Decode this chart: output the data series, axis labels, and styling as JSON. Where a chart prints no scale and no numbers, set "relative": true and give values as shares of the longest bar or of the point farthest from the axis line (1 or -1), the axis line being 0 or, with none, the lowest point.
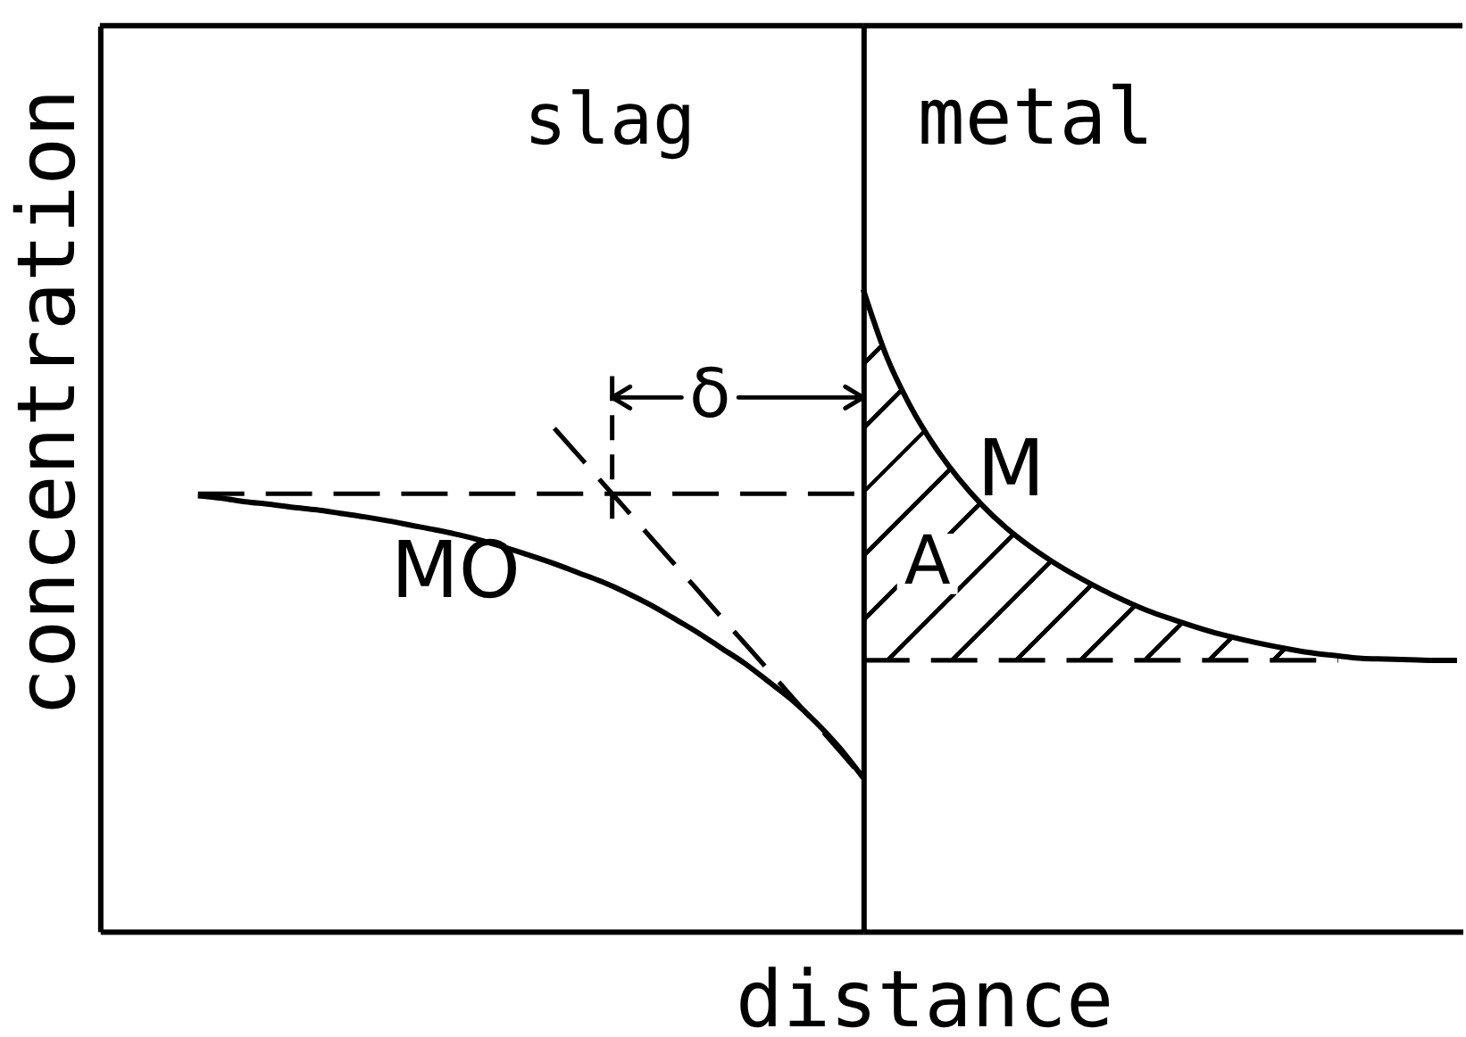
{
  "chart_data": [
    {
      "type": "line",
      "relative": true,
      "title": "slag",
      "ylabel": "concentration",
      "categories": [
        null,
        null,
        null,
        null,
        null,
        null,
        null,
        null,
        null,
        null,
        null,
        null,
        null,
        null,
        null,
        null,
        null,
        null,
        null,
        null,
        null,
        null,
        null,
        null,
        null,
        null,
        null,
        null,
        null
      ],
      "series": [
        {
          "name": "MO",
          "color": "#000000",
          "line_style": "solid",
          "values": [
            0.866,
            0.861,
            0.854,
            0.849,
            0.843,
            0.838,
            0.831,
            0.824,
            0.816,
            0.807,
            0.798,
            0.788,
            0.776,
            0.762,
            0.747,
            0.731,
            0.713,
            0.695,
            0.674,
            0.65,
            0.623,
            0.595,
            0.564,
            0.533,
            0.497,
            0.46,
            0.416,
            0.365,
            0.305
          ]
        },
        {
          "color": "#000000",
          "line_style": "dashed",
          "values": [
            0.87,
            0.87,
            0.87,
            0.87,
            0.87,
            0.87,
            0.87,
            0.87,
            0.87,
            0.87,
            0.87,
            0.87,
            0.87,
            0.87,
            0.87,
            0.87,
            0.87,
            0.87,
            0.87,
            0.87,
            0.87,
            0.87,
            0.87,
            0.87,
            0.87,
            0.87,
            0.87,
            0.87,
            0.87
          ]
        },
        {
          "color": "#000000",
          "line_style": "dashed",
          "values": [
            null,
            null,
            null,
            null,
            null,
            null,
            null,
            null,
            null,
            null,
            null,
            null,
            null,
            null,
            null,
            1.0,
            0.947,
            0.893,
            0.84,
            0.786,
            0.733,
            0.68,
            0.626,
            0.573,
            0.52,
            0.466,
            0.413,
            0.359,
            0.305
          ]
        }
      ],
      "annotations": [
        "δ"
      ]
    },
    {
      "type": "line",
      "relative": true,
      "title": "metal",
      "xlabel": "distance",
      "categories": [
        null,
        null,
        null,
        null,
        null,
        null,
        null,
        null,
        null,
        null,
        null,
        null,
        null,
        null,
        null,
        null,
        null,
        null,
        null,
        null,
        null,
        null,
        null,
        null,
        null,
        null
      ],
      "series": [
        {
          "name": "M",
          "color": "#000000",
          "line_style": "solid",
          "values": [
            1.0,
            0.894,
            0.817,
            0.756,
            0.706,
            0.664,
            0.629,
            0.6,
            0.575,
            0.553,
            0.533,
            0.515,
            0.499,
            0.486,
            0.474,
            0.463,
            0.454,
            0.446,
            0.439,
            0.433,
            0.429,
            0.425,
            0.424,
            0.423,
            0.422,
            0.422
          ],
          "lower": [
            0.422,
            0.422,
            0.422,
            0.422,
            0.422,
            0.422,
            0.422,
            0.422,
            0.422,
            0.422,
            0.422,
            0.422,
            0.422,
            0.422,
            0.422,
            0.422,
            0.422,
            0.422,
            0.422,
            0.422,
            0.422,
            null,
            null,
            null,
            null,
            null
          ],
          "upper": [
            1.0,
            0.894,
            0.817,
            0.756,
            0.706,
            0.664,
            0.629,
            0.6,
            0.575,
            0.553,
            0.533,
            0.515,
            0.499,
            0.486,
            0.474,
            0.463,
            0.454,
            0.446,
            0.439,
            0.433,
            0.429,
            null,
            null,
            null,
            null,
            null
          ]
        },
        {
          "color": "#000000",
          "line_style": "dashed",
          "values": [
            0.422,
            0.422,
            0.422,
            0.422,
            0.422,
            0.422,
            0.422,
            0.422,
            0.422,
            0.422,
            0.422,
            0.422,
            0.422,
            0.422,
            0.422,
            0.422,
            0.422,
            0.422,
            0.422,
            0.422,
            0.422,
            null,
            null,
            null,
            null,
            null
          ]
        }
      ],
      "annotations": [
        "A"
      ]
    }
  ]
}
